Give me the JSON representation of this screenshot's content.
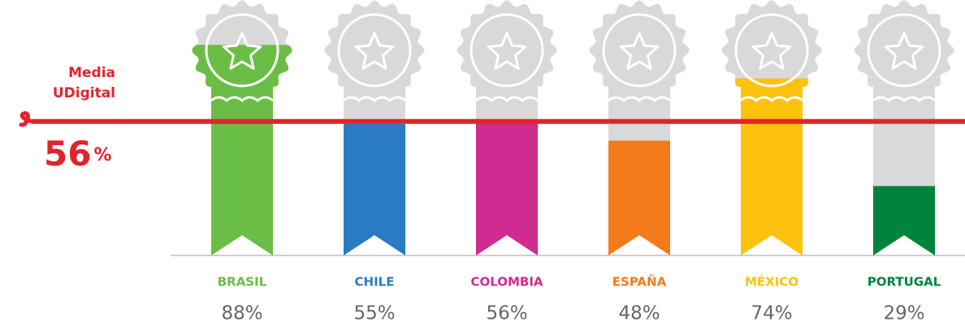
{
  "chart_data": {
    "type": "bar",
    "categories": [
      "BRASIL",
      "CHILE",
      "COLOMBIA",
      "ESPAÑA",
      "MÉXICO",
      "PORTUGAL"
    ],
    "values": [
      88,
      55,
      56,
      48,
      74,
      29
    ],
    "value_labels": [
      "88%",
      "55%",
      "56%",
      "48%",
      "74%",
      "29%"
    ],
    "colors": [
      "#6abd45",
      "#2b7bc4",
      "#d02b8e",
      "#f47b1c",
      "#fdc20e",
      "#00843d"
    ],
    "ylim": [
      0,
      100
    ],
    "reference_line": {
      "label": [
        "Media",
        "UDigital"
      ],
      "value": 56,
      "value_label": "56%",
      "color": "#e3222d"
    }
  }
}
